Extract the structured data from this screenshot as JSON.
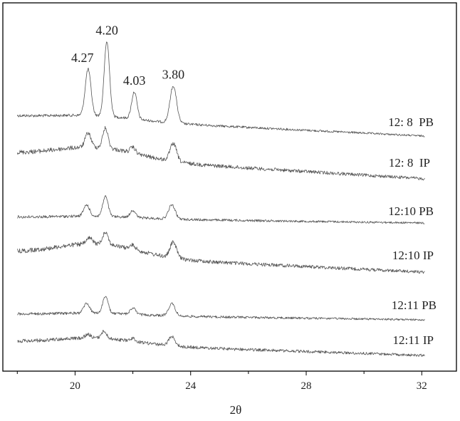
{
  "chart_data": {
    "type": "line",
    "xlabel": "2θ",
    "ylabel": "",
    "xlim": [
      17.5,
      33.2
    ],
    "xticks": [
      20,
      24,
      28,
      32
    ],
    "grid": false,
    "series": [
      {
        "name": "12: 8  PB",
        "peaks": [
          [
            20.45,
            65
          ],
          [
            21.1,
            105
          ],
          [
            22.05,
            38
          ],
          [
            23.4,
            52
          ]
        ]
      },
      {
        "name": "12: 8  IP",
        "peaks": [
          [
            20.45,
            20
          ],
          [
            21.05,
            28
          ],
          [
            22.0,
            8
          ],
          [
            23.4,
            25
          ]
        ]
      },
      {
        "name": "12:10 PB",
        "peaks": [
          [
            20.4,
            16
          ],
          [
            21.05,
            28
          ],
          [
            22.0,
            10
          ],
          [
            23.35,
            20
          ]
        ]
      },
      {
        "name": "12:10 IP",
        "peaks": [
          [
            20.5,
            8
          ],
          [
            21.05,
            18
          ],
          [
            22.0,
            6
          ],
          [
            23.4,
            22
          ]
        ]
      },
      {
        "name": "12:11 PB",
        "peaks": [
          [
            20.4,
            14
          ],
          [
            21.05,
            24
          ],
          [
            22.0,
            9
          ],
          [
            23.35,
            17
          ]
        ]
      },
      {
        "name": "12:11 IP",
        "peaks": [
          [
            20.45,
            5
          ],
          [
            21.0,
            10
          ],
          [
            22.0,
            4
          ],
          [
            23.35,
            13
          ]
        ]
      }
    ],
    "annotations": [
      {
        "text": "4.27",
        "x": 20.45
      },
      {
        "text": "4.20",
        "x": 21.1
      },
      {
        "text": "4.03",
        "x": 22.05
      },
      {
        "text": "3.80",
        "x": 23.4
      }
    ]
  }
}
